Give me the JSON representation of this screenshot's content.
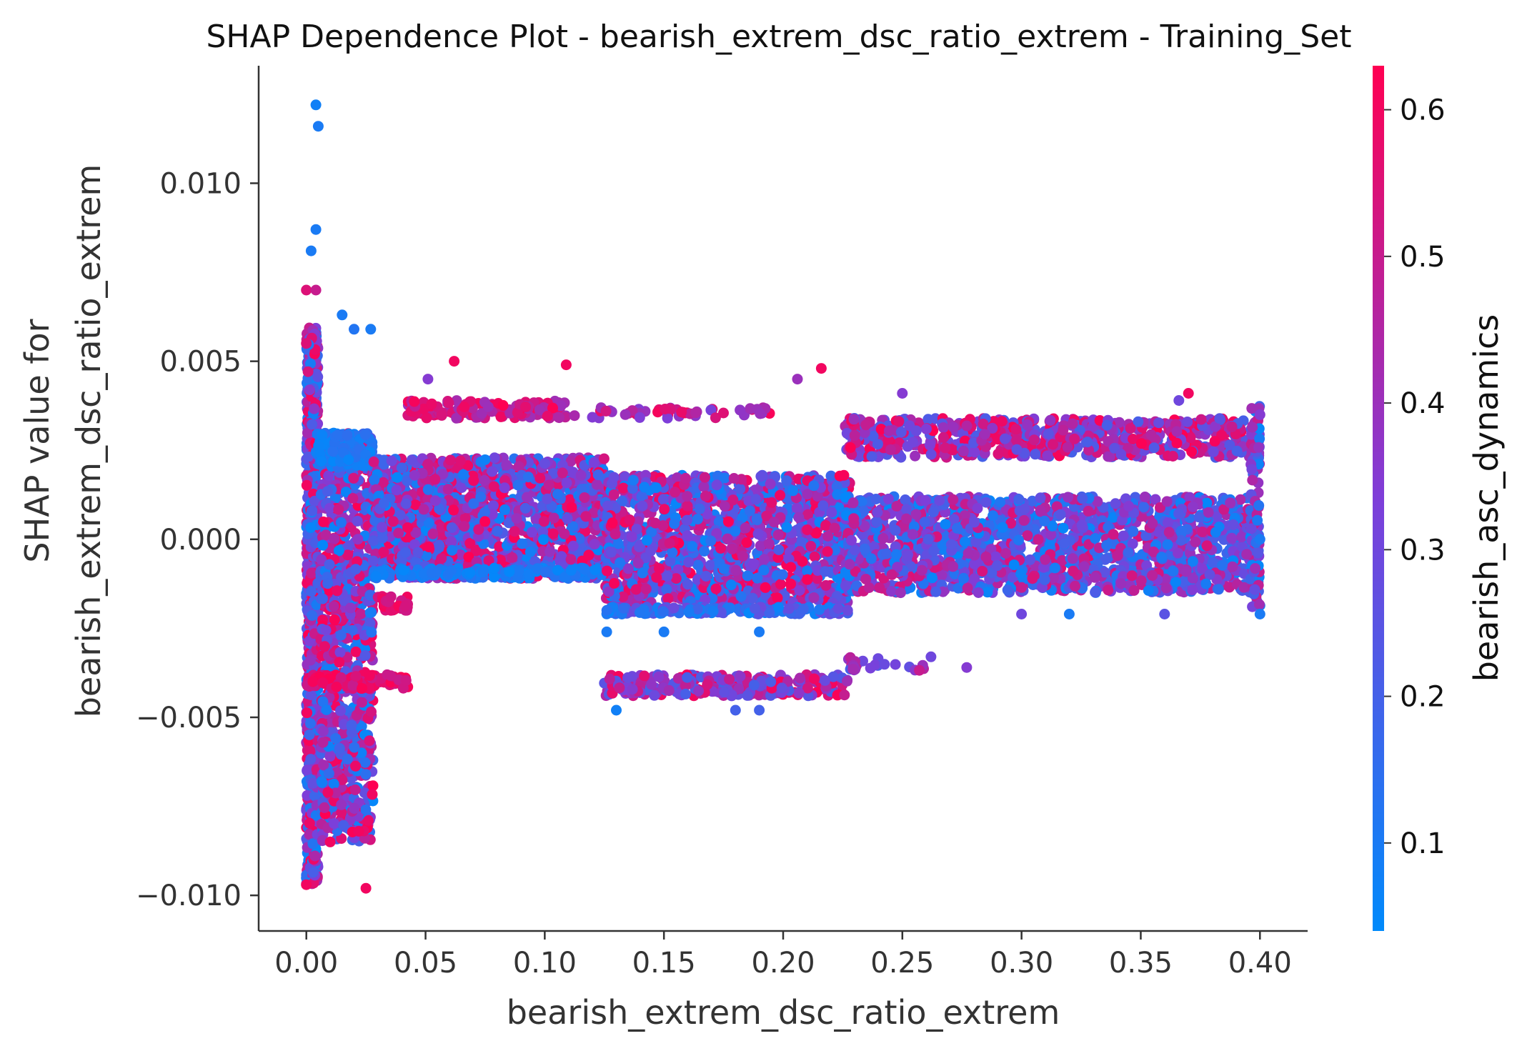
{
  "chart_data": {
    "type": "scatter",
    "title": "SHAP Dependence Plot - bearish_extrem_dsc_ratio_extrem - Training_Set",
    "xlabel": "bearish_extrem_dsc_ratio_extrem",
    "ylabel_line1": "SHAP value for",
    "ylabel_line2": "bearish_extrem_dsc_ratio_extrem",
    "xlim": [
      -0.02,
      0.42
    ],
    "ylim": [
      -0.011,
      0.0133
    ],
    "xticks": [
      0.0,
      0.05,
      0.1,
      0.15,
      0.2,
      0.25,
      0.3,
      0.35,
      0.4
    ],
    "xtick_labels": [
      "0.00",
      "0.05",
      "0.10",
      "0.15",
      "0.20",
      "0.25",
      "0.30",
      "0.35",
      "0.40"
    ],
    "yticks": [
      -0.01,
      -0.005,
      0.0,
      0.005,
      0.01
    ],
    "ytick_labels": [
      "−0.010",
      "−0.005",
      "0.000",
      "0.005",
      "0.010"
    ],
    "grid": false,
    "colorbar": {
      "label": "bearish_asc_dynamics",
      "range": [
        0.04,
        0.63
      ],
      "ticks": [
        0.1,
        0.2,
        0.3,
        0.4,
        0.5,
        0.6
      ],
      "tick_labels": [
        "0.1",
        "0.2",
        "0.3",
        "0.4",
        "0.5",
        "0.6"
      ],
      "color_low": "#008afb",
      "color_mid": "#7e3ed9",
      "color_high": "#ff0052"
    },
    "points_representative": [
      {
        "x": 0.004,
        "y": 0.0122,
        "c": 0.08
      },
      {
        "x": 0.005,
        "y": 0.0116,
        "c": 0.1
      },
      {
        "x": 0.004,
        "y": 0.0087,
        "c": 0.1
      },
      {
        "x": 0.002,
        "y": 0.0081,
        "c": 0.1
      },
      {
        "x": 0.0,
        "y": 0.007,
        "c": 0.55
      },
      {
        "x": 0.004,
        "y": 0.007,
        "c": 0.5
      },
      {
        "x": 0.015,
        "y": 0.0063,
        "c": 0.1
      },
      {
        "x": 0.02,
        "y": 0.0059,
        "c": 0.12
      },
      {
        "x": 0.027,
        "y": 0.0059,
        "c": 0.1
      },
      {
        "x": 0.0,
        "y": 0.0055,
        "c": 0.55
      },
      {
        "x": 0.0,
        "y": -0.0097,
        "c": 0.6
      },
      {
        "x": 0.025,
        "y": -0.0098,
        "c": 0.6
      },
      {
        "x": 0.01,
        "y": -0.0085,
        "c": 0.6
      },
      {
        "x": 0.022,
        "y": -0.0082,
        "c": 0.6
      },
      {
        "x": 0.026,
        "y": -0.0079,
        "c": 0.58
      },
      {
        "x": 0.062,
        "y": 0.005,
        "c": 0.6
      },
      {
        "x": 0.109,
        "y": 0.0049,
        "c": 0.6
      },
      {
        "x": 0.051,
        "y": 0.0045,
        "c": 0.35
      },
      {
        "x": 0.216,
        "y": 0.0048,
        "c": 0.6
      },
      {
        "x": 0.206,
        "y": 0.0045,
        "c": 0.4
      },
      {
        "x": 0.25,
        "y": 0.0041,
        "c": 0.35
      },
      {
        "x": 0.37,
        "y": 0.0041,
        "c": 0.6
      },
      {
        "x": 0.366,
        "y": 0.0039,
        "c": 0.3
      },
      {
        "x": 0.13,
        "y": -0.0048,
        "c": 0.08
      },
      {
        "x": 0.18,
        "y": -0.0048,
        "c": 0.2
      },
      {
        "x": 0.19,
        "y": -0.0048,
        "c": 0.2
      },
      {
        "x": 0.262,
        "y": -0.0033,
        "c": 0.3
      },
      {
        "x": 0.277,
        "y": -0.0036,
        "c": 0.35
      },
      {
        "x": 0.4,
        "y": -0.0021,
        "c": 0.1
      },
      {
        "x": 0.36,
        "y": -0.0021,
        "c": 0.25
      },
      {
        "x": 0.32,
        "y": -0.0021,
        "c": 0.1
      },
      {
        "x": 0.3,
        "y": -0.0021,
        "c": 0.3
      },
      {
        "x": 0.126,
        "y": -0.0026,
        "c": 0.1
      },
      {
        "x": 0.15,
        "y": -0.0026,
        "c": 0.1
      },
      {
        "x": 0.19,
        "y": -0.0026,
        "c": 0.1
      },
      {
        "x": 0.4,
        "y": 0.0035,
        "c": 0.35
      },
      {
        "x": 0.4,
        "y": 0.0,
        "c": 0.1
      }
    ],
    "point_clusters": [
      {
        "x": [
          0.0,
          0.005
        ],
        "y": [
          -0.0097,
          0.006
        ],
        "c": [
          0.05,
          0.63
        ],
        "n": 900
      },
      {
        "x": [
          0.006,
          0.028
        ],
        "y": [
          -0.0085,
          0.003
        ],
        "c": [
          0.05,
          0.63
        ],
        "n": 900
      },
      {
        "x": [
          0.004,
          0.028
        ],
        "y": [
          0.002,
          0.003
        ],
        "c": [
          0.05,
          0.15
        ],
        "n": 120
      },
      {
        "x": [
          0.0,
          0.043
        ],
        "y": [
          -0.0042,
          -0.0038
        ],
        "c": [
          0.5,
          0.63
        ],
        "n": 80
      },
      {
        "x": [
          0.03,
          0.043
        ],
        "y": [
          -0.002,
          -0.0016
        ],
        "c": [
          0.5,
          0.63
        ],
        "n": 40
      },
      {
        "x": [
          0.028,
          0.125
        ],
        "y": [
          -0.0011,
          0.0023
        ],
        "c": [
          0.05,
          0.63
        ],
        "n": 1600
      },
      {
        "x": [
          0.028,
          0.125
        ],
        "y": [
          -0.0011,
          -0.0008
        ],
        "c": [
          0.05,
          0.15
        ],
        "n": 120
      },
      {
        "x": [
          0.042,
          0.11
        ],
        "y": [
          0.0034,
          0.0039
        ],
        "c": [
          0.4,
          0.63
        ],
        "n": 140
      },
      {
        "x": [
          0.11,
          0.195
        ],
        "y": [
          0.0034,
          0.0037
        ],
        "c": [
          0.3,
          0.63
        ],
        "n": 50
      },
      {
        "x": [
          0.125,
          0.228
        ],
        "y": [
          -0.0018,
          0.0018
        ],
        "c": [
          0.05,
          0.63
        ],
        "n": 1400
      },
      {
        "x": [
          0.125,
          0.228
        ],
        "y": [
          -0.0021,
          -0.0019
        ],
        "c": [
          0.05,
          0.3
        ],
        "n": 160
      },
      {
        "x": [
          0.125,
          0.228
        ],
        "y": [
          -0.0044,
          -0.0038
        ],
        "c": [
          0.2,
          0.63
        ],
        "n": 260
      },
      {
        "x": [
          0.226,
          0.4
        ],
        "y": [
          -0.0015,
          0.0012
        ],
        "c": [
          0.05,
          0.55
        ],
        "n": 1600
      },
      {
        "x": [
          0.226,
          0.4
        ],
        "y": [
          0.0023,
          0.0034
        ],
        "c": [
          0.2,
          0.63
        ],
        "n": 700
      },
      {
        "x": [
          0.226,
          0.26
        ],
        "y": [
          -0.0037,
          -0.0033
        ],
        "c": [
          0.2,
          0.5
        ],
        "n": 25
      },
      {
        "x": [
          0.396,
          0.4
        ],
        "y": [
          -0.002,
          0.0038
        ],
        "c": [
          0.05,
          0.5
        ],
        "n": 80
      }
    ]
  }
}
